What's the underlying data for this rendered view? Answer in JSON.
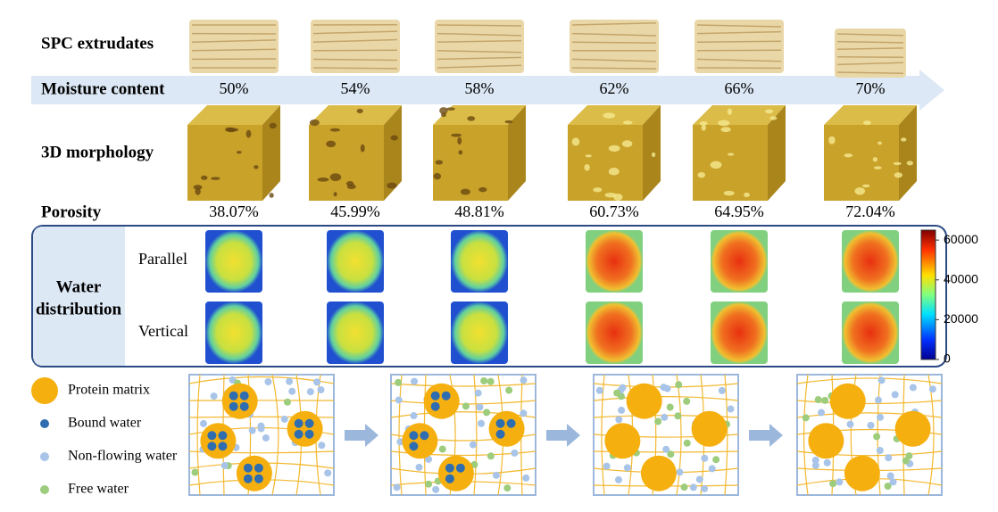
{
  "rows": {
    "extrudates": "SPC extrudates",
    "moisture": "Moisture content",
    "morphology": "3D morphology",
    "porosity": "Porosity"
  },
  "moisture_content": [
    "50%",
    "54%",
    "58%",
    "62%",
    "66%",
    "70%"
  ],
  "porosity": [
    "38.07%",
    "45.99%",
    "48.81%",
    "60.73%",
    "64.95%",
    "72.04%"
  ],
  "water_distribution": {
    "title_line1": "Water",
    "title_line2": "distribution",
    "parallel": "Parallel",
    "vertical": "Vertical",
    "colorbar_ticks": [
      60000,
      40000,
      20000,
      0
    ]
  },
  "legend": [
    "Protein matrix",
    "Bound water",
    "Non-flowing water",
    "Free water"
  ]
}
